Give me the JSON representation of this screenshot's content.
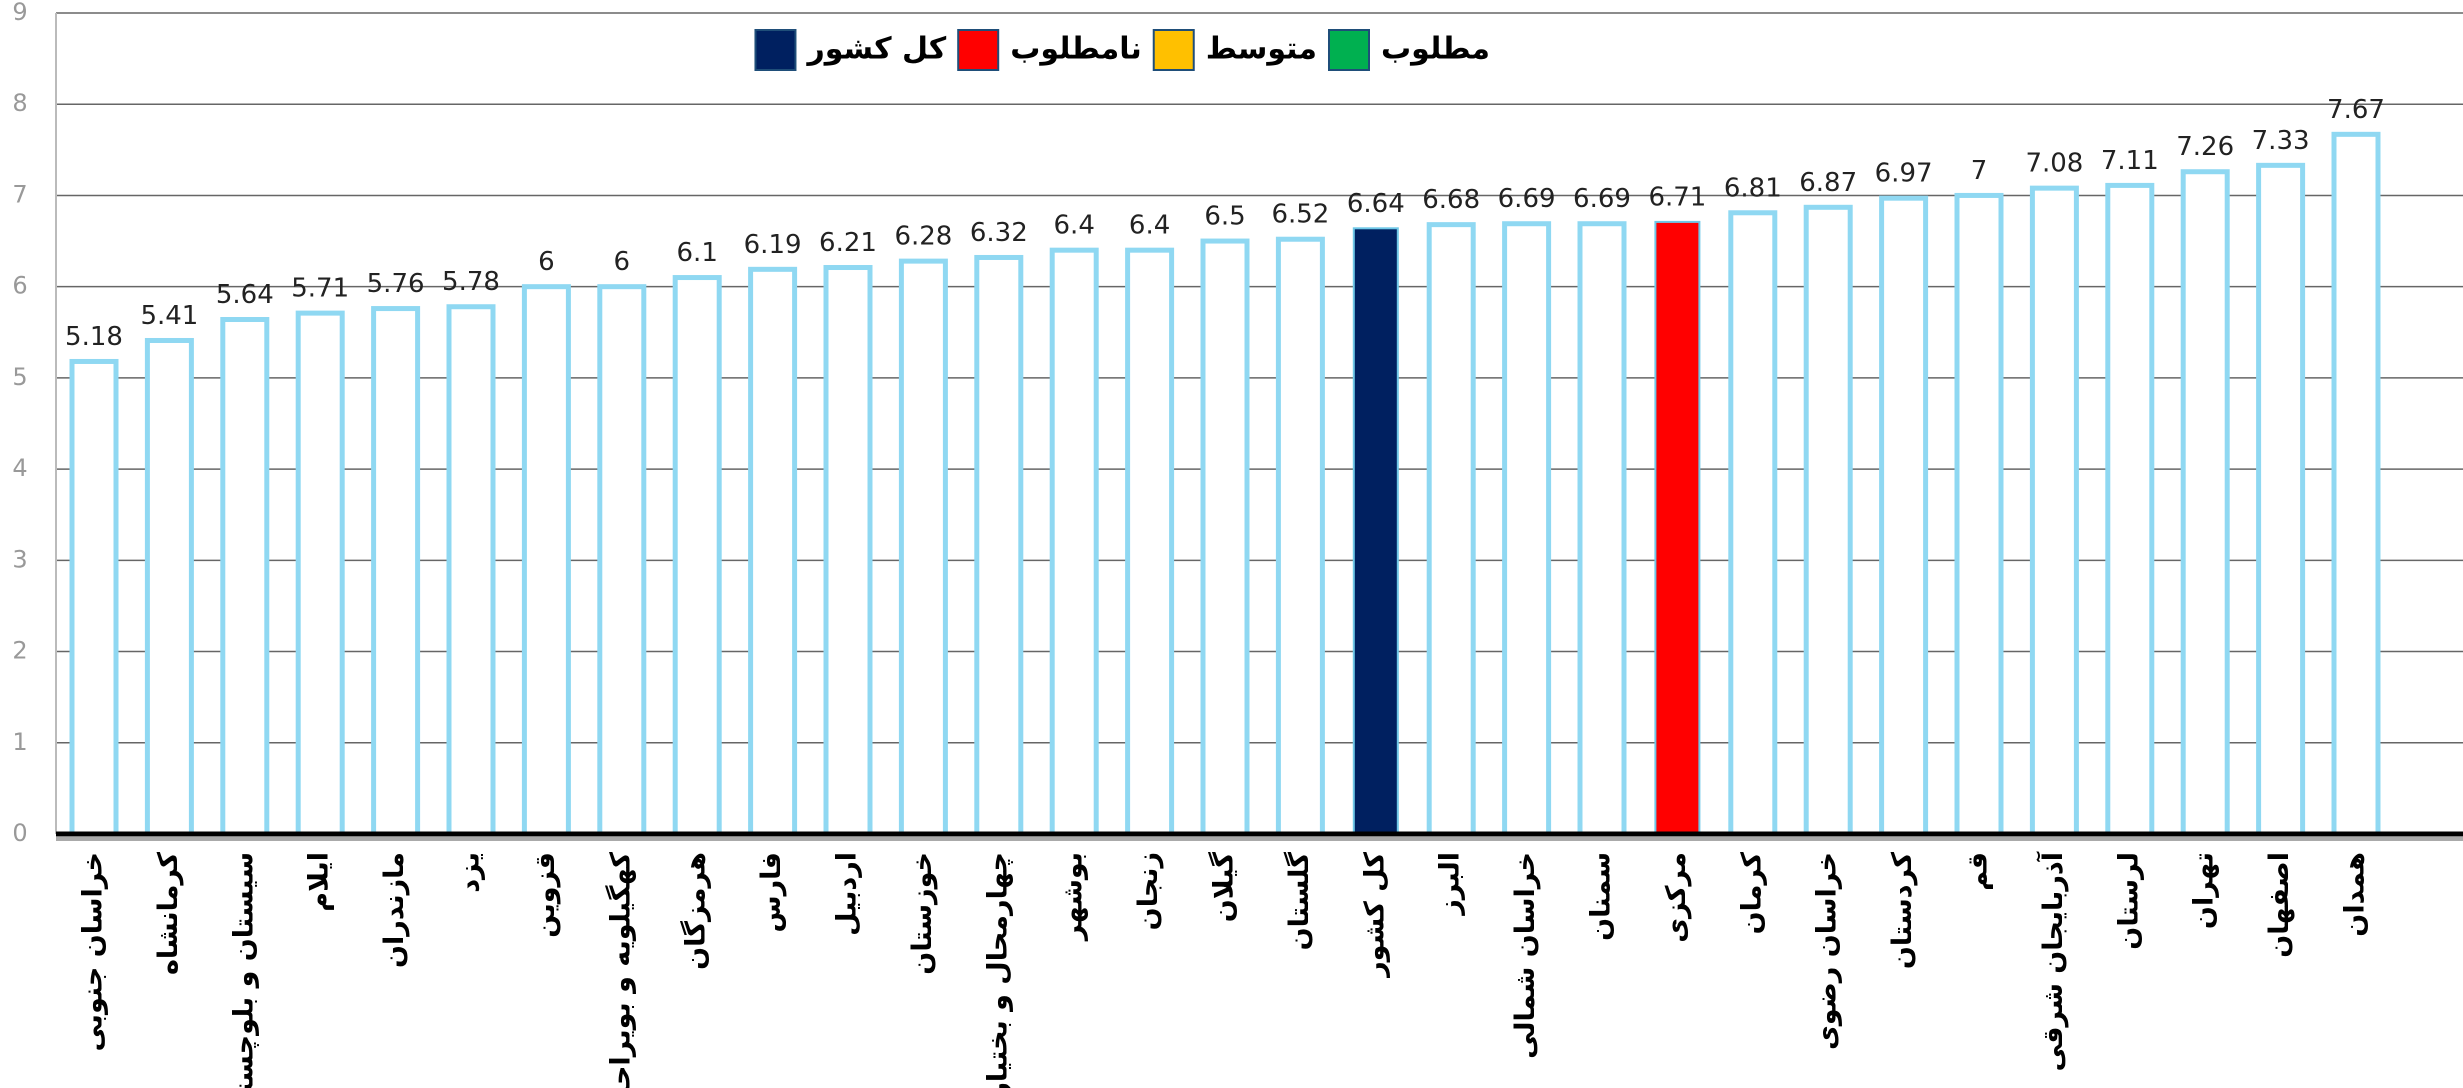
{
  "chart_data": {
    "type": "bar",
    "categories": [
      "خراسان جنوبی",
      "کرمانشاه",
      "سیستان و بلوچستان",
      "ایلام",
      "مازندران",
      "یزد",
      "قزوین",
      "کهگیلویه و بویراحمد",
      "هرمزگان",
      "فارس",
      "اردبیل",
      "خوزستان",
      "چهارمحال و بختیاری",
      "بوشهر",
      "زنجان",
      "گیلان",
      "گلستان",
      "کل کشور",
      "البرز",
      "خراسان شمالی",
      "سمنان",
      "مرکزی",
      "کرمان",
      "خراسان رضوی",
      "کردستان",
      "قم",
      "آذربایجان شرقی",
      "لرستان",
      "تهران",
      "اصفهان",
      "همدان"
    ],
    "values": [
      5.18,
      5.41,
      5.64,
      5.71,
      5.76,
      5.78,
      6,
      6,
      6.1,
      6.19,
      6.21,
      6.28,
      6.32,
      6.4,
      6.4,
      6.5,
      6.52,
      6.64,
      6.68,
      6.69,
      6.69,
      6.71,
      6.81,
      6.87,
      6.97,
      7,
      7.08,
      7.11,
      7.26,
      7.33,
      7.67
    ],
    "bar_colors": [
      "#ffffff",
      "#ffffff",
      "#ffffff",
      "#ffffff",
      "#ffffff",
      "#ffffff",
      "#ffffff",
      "#ffffff",
      "#ffffff",
      "#ffffff",
      "#ffffff",
      "#ffffff",
      "#ffffff",
      "#ffffff",
      "#ffffff",
      "#ffffff",
      "#ffffff",
      "#002060",
      "#ffffff",
      "#ffffff",
      "#ffffff",
      "#ff0000",
      "#ffffff",
      "#ffffff",
      "#ffffff",
      "#ffffff",
      "#ffffff",
      "#ffffff",
      "#ffffff",
      "#ffffff",
      "#ffffff"
    ],
    "bar_stroke": "#8fd8f2",
    "legend": [
      {
        "name": "مطلوب",
        "color": "#00b050"
      },
      {
        "name": "متوسط",
        "color": "#ffc000"
      },
      {
        "name": "نامطلوب",
        "color": "#ff0000"
      },
      {
        "name": "کل کشور",
        "color": "#002060"
      }
    ],
    "ylim": [
      0,
      9
    ],
    "yticks": [
      0,
      1,
      2,
      3,
      4,
      5,
      6,
      7,
      8,
      9
    ],
    "grid": true
  }
}
